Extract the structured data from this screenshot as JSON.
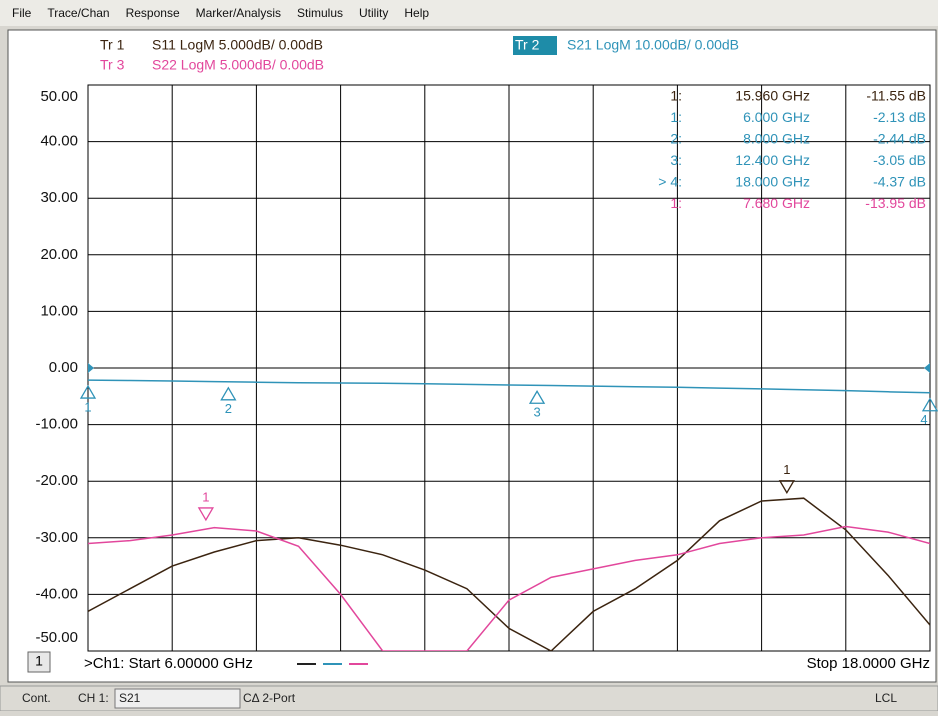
{
  "menu": [
    "File",
    "Trace/Chan",
    "Response",
    "Marker/Analysis",
    "Stimulus",
    "Utility",
    "Help"
  ],
  "chart_data": {
    "type": "line",
    "start_label": ">Ch1: Start 6.00000 GHz",
    "stop_label": "Stop 18.0000 GHz",
    "channel": "1",
    "xlim": [
      6,
      18
    ],
    "ylim": [
      -50,
      50
    ],
    "yticks": [
      {
        "value": 50,
        "label": "50.00"
      },
      {
        "value": 40,
        "label": "40.00"
      },
      {
        "value": 30,
        "label": "30.00"
      },
      {
        "value": 20,
        "label": "20.00"
      },
      {
        "value": 10,
        "label": "10.00"
      },
      {
        "value": 0,
        "label": "0.00"
      },
      {
        "value": -10,
        "label": "-10.00"
      },
      {
        "value": -20,
        "label": "-20.00"
      },
      {
        "value": -30,
        "label": "-30.00"
      },
      {
        "value": -40,
        "label": "-40.00"
      },
      {
        "value": -50,
        "label": "-50.00"
      }
    ],
    "grid": true,
    "series": [
      {
        "trace": "Tr 1",
        "name": "S11 LogM 5.000dB/  0.00dB",
        "color": "#3b2410",
        "x": [
          6,
          6.6,
          7.2,
          7.8,
          8.4,
          9.0,
          9.6,
          10.2,
          10.8,
          11.4,
          12.0,
          12.6,
          13.2,
          13.8,
          14.4,
          15.0,
          15.6,
          16.2,
          16.8,
          17.4,
          18.0
        ],
        "values": [
          -43,
          -39,
          -35,
          -32.5,
          -30.5,
          -30,
          -31.3,
          -33,
          -35.7,
          -39,
          -46,
          -50,
          -43,
          -39,
          -34,
          -27,
          -23.5,
          -23,
          -28.6,
          -36.6,
          -45.4
        ],
        "markers": [
          {
            "tag": "1",
            "label": "1:",
            "stimulus": "15.960 GHz",
            "response": "-11.55 dB",
            "x": 15.96,
            "y": -23.1
          }
        ]
      },
      {
        "trace": "Tr 2",
        "name": "S21 LogM 10.00dB/  0.00dB",
        "color": "#2f93b8",
        "x": [
          6,
          6.6,
          7.2,
          7.8,
          8.4,
          9.0,
          9.6,
          10.2,
          10.8,
          11.4,
          12.0,
          12.6,
          13.2,
          13.8,
          14.4,
          15.0,
          15.6,
          16.2,
          16.8,
          17.4,
          18.0
        ],
        "values": [
          -2.13,
          -2.2,
          -2.3,
          -2.4,
          -2.5,
          -2.6,
          -2.65,
          -2.7,
          -2.8,
          -2.9,
          -3.0,
          -3.1,
          -3.2,
          -3.3,
          -3.4,
          -3.55,
          -3.7,
          -3.85,
          -4.0,
          -4.2,
          -4.37
        ],
        "markers": [
          {
            "tag": "1",
            "label": "1:",
            "stimulus": "6.000 GHz",
            "response": "-2.13 dB",
            "x": 6.0,
            "y": -2.13
          },
          {
            "tag": "2",
            "label": "2:",
            "stimulus": "8.000 GHz",
            "response": "-2.44 dB",
            "x": 8.0,
            "y": -2.44
          },
          {
            "tag": "3",
            "label": "3:",
            "stimulus": "12.400 GHz",
            "response": "-3.05 dB",
            "x": 12.4,
            "y": -3.05
          },
          {
            "tag": "4",
            "label": "> 4:",
            "stimulus": "18.000 GHz",
            "response": "-4.37 dB",
            "x": 18.0,
            "y": -4.37
          }
        ]
      },
      {
        "trace": "Tr 3",
        "name": "S22 LogM 5.000dB/  0.00dB",
        "color": "#e2479c",
        "x": [
          6,
          6.6,
          7.2,
          7.8,
          8.4,
          9.0,
          9.6,
          10.2,
          10.8,
          11.4,
          12.0,
          12.6,
          13.2,
          13.8,
          14.4,
          15.0,
          15.6,
          16.2,
          16.8,
          17.4,
          18.0
        ],
        "values": [
          -31,
          -30.5,
          -29.5,
          -28.2,
          -28.8,
          -31.5,
          -40,
          -50,
          -50,
          -50,
          -41,
          -37,
          -35.5,
          -34,
          -33,
          -31,
          -30,
          -29.5,
          -28,
          -29,
          -31
        ],
        "markers": [
          {
            "tag": "1",
            "label": "1:",
            "stimulus": "7.680 GHz",
            "response": "-13.95 dB",
            "x": 7.68,
            "y": -27.9
          }
        ]
      }
    ]
  },
  "status": {
    "mode": "Cont.",
    "channel": "CH 1:",
    "trace": "S21",
    "cal": "CΔ 2-Port",
    "remote": "LCL"
  }
}
